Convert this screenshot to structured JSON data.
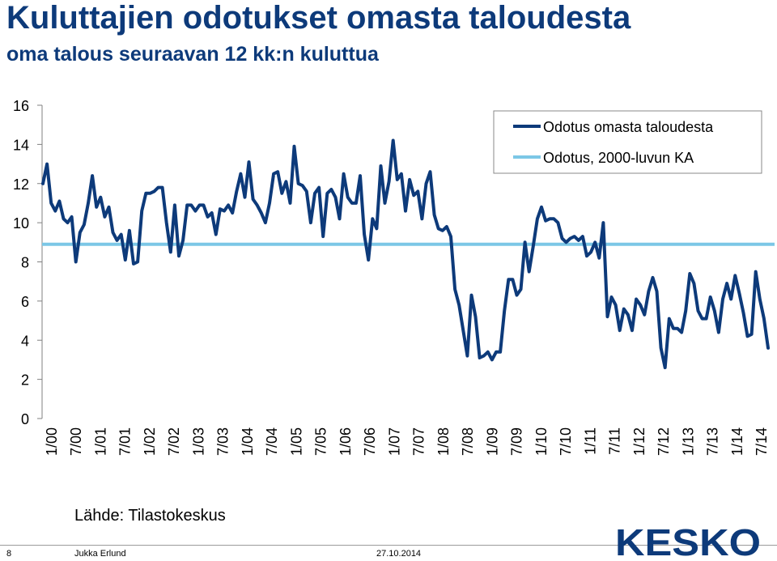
{
  "header": {
    "title": "Kuluttajien odotukset omasta taloudesta",
    "subtitle": "oma talous seuraavan 12 kk:n kuluttua"
  },
  "source": "Lähde: Tilastokeskus",
  "footer": {
    "page_number": "8",
    "author": "Jukka Erlund",
    "date": "27.10.2014",
    "logo_text": "KESKO"
  },
  "colors": {
    "title": "#0d3a7a",
    "series_main": "#0d3a7a",
    "series_avg": "#7cc7e6",
    "logo": "#0d3a7a"
  },
  "chart_data": {
    "type": "line",
    "title": "",
    "xlabel": "",
    "ylabel": "",
    "ylim": [
      0,
      16
    ],
    "y_ticks": [
      0,
      2,
      4,
      6,
      8,
      10,
      12,
      14,
      16
    ],
    "grid": false,
    "legend_position": "top-right",
    "x_tick_labels": [
      "1/00",
      "7/00",
      "1/01",
      "7/01",
      "1/02",
      "7/02",
      "1/03",
      "7/03",
      "1/04",
      "7/04",
      "1/05",
      "7/05",
      "1/06",
      "7/06",
      "1/07",
      "7/07",
      "1/08",
      "7/08",
      "1/09",
      "7/09",
      "1/10",
      "7/10",
      "1/11",
      "7/11",
      "1/12",
      "7/12",
      "1/13",
      "7/13",
      "1/14",
      "7/14"
    ],
    "series": [
      {
        "name": "Odotus omasta taloudesta",
        "color": "#0d3a7a",
        "values": [
          12.0,
          13.0,
          11.0,
          10.6,
          11.1,
          10.2,
          10.0,
          10.3,
          8.0,
          9.5,
          9.9,
          11.0,
          12.4,
          10.8,
          11.3,
          10.3,
          10.8,
          9.5,
          9.1,
          9.4,
          8.1,
          9.6,
          7.9,
          8.0,
          10.6,
          11.5,
          11.5,
          11.6,
          11.8,
          11.8,
          10.0,
          8.5,
          10.9,
          8.3,
          9.1,
          10.9,
          10.9,
          10.6,
          10.9,
          10.9,
          10.3,
          10.5,
          9.4,
          10.7,
          10.6,
          10.9,
          10.5,
          11.6,
          12.5,
          11.3,
          13.1,
          11.2,
          10.9,
          10.5,
          10.0,
          11.0,
          12.5,
          12.6,
          11.5,
          12.1,
          11.0,
          13.9,
          12.0,
          11.9,
          11.6,
          10.0,
          11.5,
          11.8,
          9.3,
          11.5,
          11.7,
          11.3,
          10.2,
          12.5,
          11.3,
          11.0,
          11.0,
          12.4,
          9.4,
          8.1,
          10.2,
          9.7,
          12.9,
          11.0,
          12.1,
          14.2,
          12.2,
          12.5,
          10.6,
          12.2,
          11.4,
          11.6,
          10.2,
          12.0,
          12.6,
          10.4,
          9.7,
          9.6,
          9.8,
          9.3,
          6.6,
          5.8,
          4.5,
          3.2,
          6.3,
          5.2,
          3.1,
          3.2,
          3.4,
          3.0,
          3.4,
          3.4,
          5.5,
          7.1,
          7.1,
          6.3,
          6.6,
          9.0,
          7.5,
          8.8,
          10.2,
          10.8,
          10.1,
          10.2,
          10.2,
          10.0,
          9.2,
          9.0,
          9.2,
          9.3,
          9.1,
          9.3,
          8.3,
          8.5,
          9.0,
          8.2,
          10.0,
          5.2,
          6.2,
          5.8,
          4.5,
          5.6,
          5.3,
          4.5,
          6.1,
          5.8,
          5.3,
          6.5,
          7.2,
          6.5,
          3.6,
          2.6,
          5.1,
          4.6,
          4.6,
          4.4,
          5.5,
          7.4,
          6.9,
          5.5,
          5.1,
          5.1,
          6.2,
          5.5,
          4.4,
          6.1,
          6.9,
          6.1,
          7.3,
          6.4,
          5.4,
          4.2,
          4.3,
          7.5,
          6.1,
          5.1,
          3.6
        ]
      },
      {
        "name": "Odotus, 2000-luvun KA",
        "color": "#7cc7e6",
        "values": [
          8.9,
          8.9
        ]
      }
    ]
  }
}
